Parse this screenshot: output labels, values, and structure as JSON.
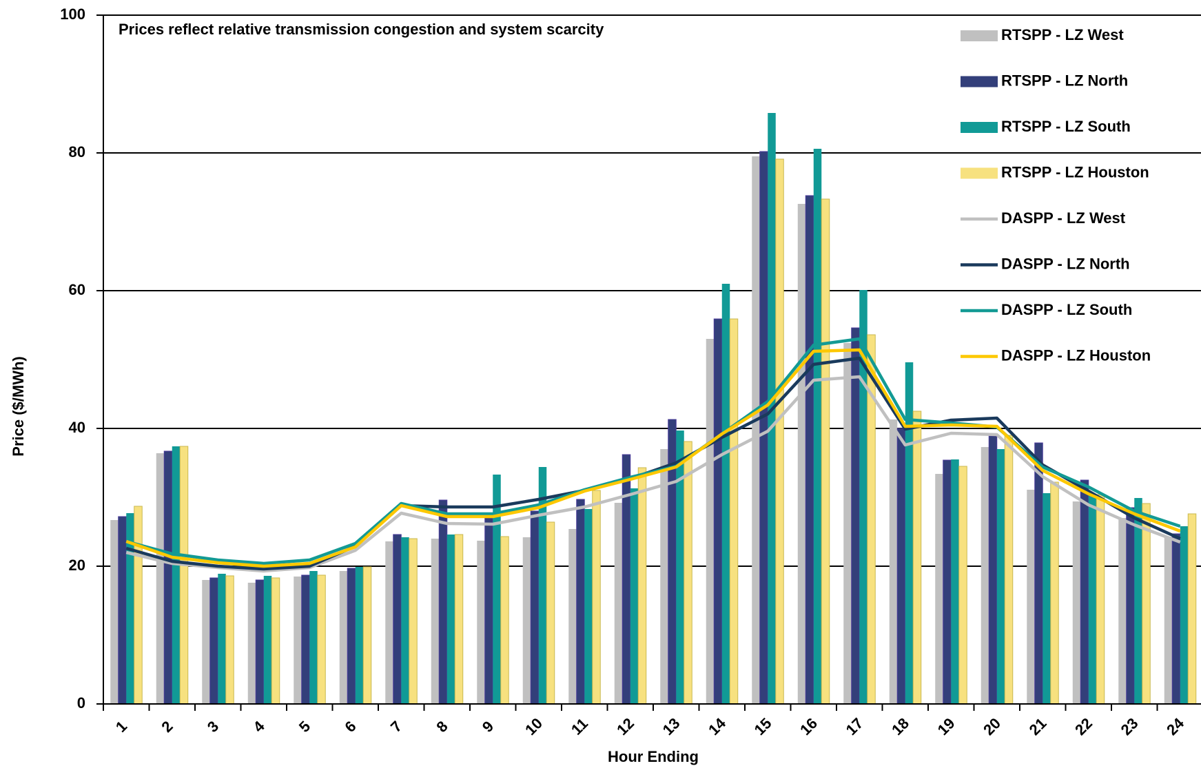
{
  "chart_data": {
    "type": "bar_line",
    "annotation": "Prices reflect relative transmission congestion and system scarcity",
    "x_label": "Hour Ending",
    "y_label": "Price ($/MWh)",
    "categories": [
      "1",
      "2",
      "3",
      "4",
      "5",
      "6",
      "7",
      "8",
      "9",
      "10",
      "11",
      "12",
      "13",
      "14",
      "15",
      "16",
      "17",
      "18",
      "19",
      "20",
      "21",
      "22",
      "23",
      "24"
    ],
    "ylim": [
      0,
      100
    ],
    "yticks": [
      0,
      20,
      40,
      60,
      80,
      100
    ],
    "grid": true,
    "legend": "upper right",
    "series": [
      {
        "name": "RTSPP - LZ West",
        "kind": "bar",
        "color": "#c0c0c0",
        "values": [
          26.7,
          36.4,
          18.0,
          17.6,
          18.5,
          19.3,
          23.6,
          24.0,
          23.7,
          24.2,
          25.4,
          29.2,
          37.0,
          53.0,
          79.5,
          72.6,
          52.4,
          41.3,
          33.4,
          37.3,
          31.1,
          29.4,
          27.0,
          24.3
        ]
      },
      {
        "name": "RTSPP - LZ North",
        "kind": "bar",
        "color": "#333f7a",
        "values": [
          27.2,
          36.7,
          18.3,
          18.0,
          18.7,
          19.7,
          24.6,
          29.6,
          27.0,
          28.0,
          29.7,
          36.2,
          41.3,
          55.9,
          80.2,
          73.8,
          54.6,
          40.0,
          35.4,
          38.9,
          37.9,
          32.5,
          28.5,
          24.7
        ]
      },
      {
        "name": "RTSPP - LZ South",
        "kind": "bar",
        "color": "#119a96",
        "values": [
          27.7,
          37.4,
          18.9,
          18.6,
          19.3,
          19.9,
          24.2,
          24.6,
          33.3,
          34.4,
          28.3,
          31.3,
          39.7,
          61.0,
          85.8,
          80.6,
          60.1,
          49.6,
          35.5,
          37.0,
          30.6,
          30.5,
          29.9,
          25.8
        ]
      },
      {
        "name": "RTSPP - LZ Houston",
        "kind": "bar",
        "color": "#f7e17f",
        "values": [
          28.7,
          37.4,
          18.6,
          18.3,
          18.7,
          19.9,
          24.0,
          24.6,
          24.3,
          26.4,
          31.0,
          34.3,
          38.1,
          55.9,
          79.1,
          73.3,
          53.6,
          42.5,
          34.5,
          39.0,
          32.2,
          30.4,
          29.1,
          27.6
        ]
      },
      {
        "name": "DASPP - LZ West",
        "kind": "line",
        "color": "#c0c0c0",
        "values": [
          22.0,
          20.4,
          19.8,
          19.3,
          19.8,
          22.3,
          27.7,
          26.2,
          26.1,
          27.4,
          28.6,
          30.4,
          32.3,
          36.2,
          39.6,
          47.0,
          47.5,
          37.6,
          39.3,
          39.1,
          33.0,
          28.9,
          26.0,
          23.5
        ]
      },
      {
        "name": "DASPP - LZ North",
        "kind": "line",
        "color": "#1a3a5c",
        "values": [
          22.6,
          20.7,
          20.0,
          19.6,
          20.0,
          22.9,
          28.8,
          28.6,
          28.6,
          29.7,
          31.0,
          32.7,
          35.0,
          38.7,
          42.1,
          49.3,
          50.2,
          39.9,
          41.2,
          41.5,
          34.7,
          30.9,
          27.0,
          24.0
        ]
      },
      {
        "name": "DASPP - LZ South",
        "kind": "line",
        "color": "#139a94",
        "values": [
          23.6,
          21.8,
          20.9,
          20.4,
          20.9,
          23.3,
          29.1,
          27.6,
          27.6,
          28.9,
          31.1,
          32.9,
          34.5,
          39.2,
          43.9,
          52.1,
          53.0,
          41.3,
          40.8,
          40.2,
          34.4,
          31.5,
          28.0,
          25.8
        ]
      },
      {
        "name": "DASPP - LZ Houston",
        "kind": "line",
        "color": "#fdc800",
        "values": [
          23.6,
          21.3,
          20.5,
          20.0,
          20.4,
          22.8,
          28.8,
          27.2,
          27.2,
          28.5,
          30.9,
          32.6,
          34.4,
          39.2,
          43.4,
          51.2,
          51.4,
          40.3,
          40.5,
          40.3,
          33.9,
          30.5,
          27.6,
          25.1
        ]
      }
    ]
  }
}
